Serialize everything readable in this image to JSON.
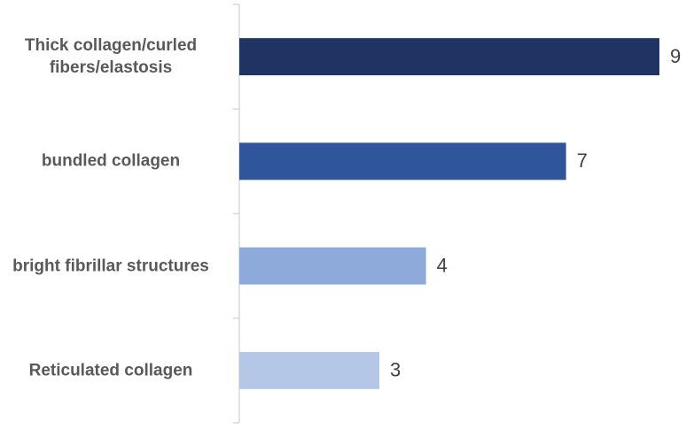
{
  "chart_data": {
    "type": "bar",
    "orientation": "horizontal",
    "categories": [
      "Thick collagen/curled fibers/elastosis",
      "bundled collagen",
      "bright fibrillar structures",
      "Reticulated collagen"
    ],
    "values": [
      9,
      7,
      4,
      3
    ],
    "colors": [
      "#203463",
      "#2f559b",
      "#8eaadb",
      "#b4c7e7"
    ]
  }
}
